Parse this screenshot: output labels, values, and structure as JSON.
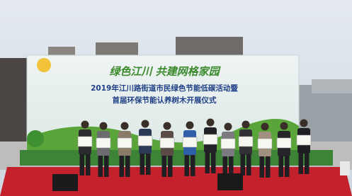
{
  "banner": {
    "slogan": "绿色江川 共建网格家园",
    "line1": "2019年江川路街道市民绿色节能低碳活动暨",
    "line2": "首届环保节能认养树木开展仪式"
  }
}
